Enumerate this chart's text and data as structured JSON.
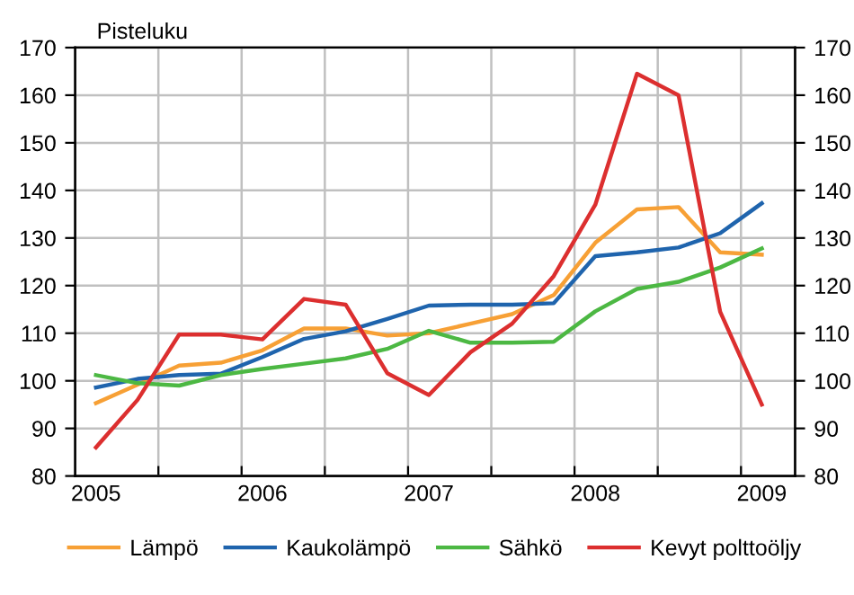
{
  "chart_data": {
    "type": "line",
    "ylabel": "Pisteluku",
    "x": [
      2005,
      2005.25,
      2005.5,
      2005.75,
      2006,
      2006.25,
      2006.5,
      2006.75,
      2007,
      2007.25,
      2007.5,
      2007.75,
      2008,
      2008.25,
      2008.5,
      2008.75,
      2009
    ],
    "series": [
      {
        "name": "Lämpö",
        "color": "#f7a035",
        "values": [
          95.3,
          99.2,
          103.2,
          103.8,
          106.4,
          111,
          111,
          109.5,
          110,
          112,
          114,
          118,
          129,
          136,
          136.5,
          127,
          126.5
        ]
      },
      {
        "name": "Kaukolämpö",
        "color": "#1f64ad",
        "values": [
          98.6,
          100.4,
          101.2,
          101.5,
          105,
          108.8,
          110.4,
          113,
          115.8,
          116,
          116,
          116.3,
          126.2,
          127,
          128,
          131,
          137.3
        ]
      },
      {
        "name": "Sähkö",
        "color": "#4cb843",
        "values": [
          101.2,
          99.5,
          99,
          101.2,
          102.5,
          103.6,
          104.7,
          106.7,
          110.5,
          108,
          108,
          108.2,
          114.6,
          119.3,
          120.8,
          123.8,
          127.8
        ]
      },
      {
        "name": "Kevyt polttoöljy",
        "color": "#dc2f2f",
        "values": [
          86,
          96,
          109.7,
          109.7,
          108.7,
          117.2,
          116,
          101.6,
          97,
          106,
          112,
          122,
          137,
          164.5,
          160,
          114.5,
          95
        ]
      }
    ],
    "xlim": [
      2004.875,
      2009.2
    ],
    "xticks": [
      {
        "value": 2005.375,
        "label": null
      },
      {
        "value": 2005.875,
        "label": null
      },
      {
        "value": 2006.375,
        "label": null
      },
      {
        "value": 2006.875,
        "label": null
      },
      {
        "value": 2007.375,
        "label": null
      },
      {
        "value": 2007.875,
        "label": null
      },
      {
        "value": 2008.375,
        "label": null
      },
      {
        "value": 2008.875,
        "label": null
      },
      {
        "value": 2005,
        "label": "2005"
      },
      {
        "value": 2006,
        "label": "2006"
      },
      {
        "value": 2007,
        "label": "2007"
      },
      {
        "value": 2008,
        "label": "2008"
      },
      {
        "value": 2009,
        "label": "2009"
      }
    ],
    "ylim": [
      80,
      170
    ],
    "yticks": [
      80,
      90,
      100,
      110,
      120,
      130,
      140,
      150,
      160,
      170
    ],
    "y2lim": [
      80,
      170
    ],
    "y2ticks": [
      80,
      90,
      100,
      110,
      120,
      130,
      140,
      150,
      160,
      170
    ],
    "grid": true,
    "legend": "bottom",
    "marker": "none",
    "line_style": "solid"
  }
}
